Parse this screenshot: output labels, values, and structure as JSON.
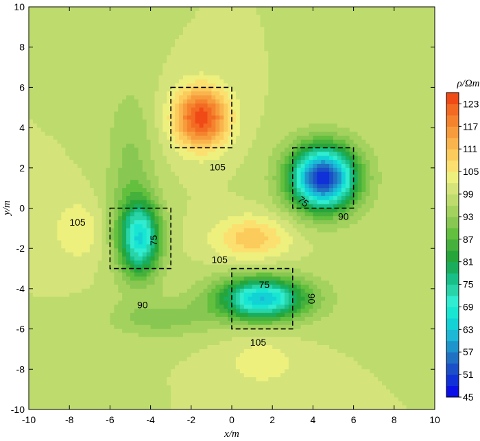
{
  "chart_data": {
    "type": "heatmap",
    "subtype": "filled-contour",
    "title": "",
    "xlabel": "x/m",
    "ylabel": "y/m",
    "xlim": [
      -10,
      10
    ],
    "ylim": [
      -10,
      10
    ],
    "x_ticks": [
      -10,
      -8,
      -6,
      -4,
      -2,
      0,
      2,
      4,
      6,
      8,
      10
    ],
    "y_ticks": [
      -10,
      -8,
      -6,
      -4,
      -2,
      0,
      2,
      4,
      6,
      8,
      10
    ],
    "background_value": 99,
    "anomalies": [
      {
        "name": "high-resistivity-body",
        "center": [
          -1.5,
          4.5
        ],
        "peak": 125
      },
      {
        "name": "low-resistivity-body-northeast",
        "center": [
          4.5,
          1.5
        ],
        "peak": 53
      },
      {
        "name": "low-resistivity-body-west",
        "center": [
          -4.5,
          -1.5
        ],
        "peak": 70
      },
      {
        "name": "low-resistivity-body-south",
        "center": [
          1.5,
          -4.5
        ],
        "peak": 70
      },
      {
        "name": "secondary-high-center",
        "center": [
          1,
          -1.5
        ],
        "peak": 110
      },
      {
        "name": "secondary-high-south",
        "center": [
          1.5,
          -7.5
        ],
        "peak": 104
      }
    ],
    "model_boxes": [
      {
        "name": "box-high",
        "x": [
          -3,
          0
        ],
        "y": [
          3,
          6
        ]
      },
      {
        "name": "box-northeast",
        "x": [
          3,
          6
        ],
        "y": [
          0,
          3
        ]
      },
      {
        "name": "box-west",
        "x": [
          -6,
          -3
        ],
        "y": [
          -3,
          0
        ]
      },
      {
        "name": "box-south",
        "x": [
          0,
          3
        ],
        "y": [
          -6,
          -3
        ]
      }
    ],
    "contour_labels": [
      {
        "text": "105",
        "x": -0.7,
        "y": 2.0,
        "rotation": 0
      },
      {
        "text": "75",
        "x": 3.5,
        "y": 0.3,
        "rotation": 40
      },
      {
        "text": "90",
        "x": 5.5,
        "y": -0.45,
        "rotation": 0
      },
      {
        "text": "105",
        "x": -7.6,
        "y": -0.75,
        "rotation": 0
      },
      {
        "text": "75",
        "x": -3.8,
        "y": -1.6,
        "rotation": -90
      },
      {
        "text": "105",
        "x": -0.6,
        "y": -2.6,
        "rotation": 0
      },
      {
        "text": "75",
        "x": 1.6,
        "y": -3.85,
        "rotation": 0
      },
      {
        "text": "90",
        "x": 3.9,
        "y": -4.5,
        "rotation": 90
      },
      {
        "text": "90",
        "x": -4.4,
        "y": -4.85,
        "rotation": 0
      },
      {
        "text": "105",
        "x": 1.3,
        "y": -6.7,
        "rotation": 0
      }
    ],
    "colorbar": {
      "title": "ρ/Ωm",
      "levels": [
        45,
        48,
        51,
        54,
        57,
        60,
        63,
        66,
        69,
        72,
        75,
        78,
        81,
        84,
        87,
        90,
        93,
        96,
        99,
        102,
        105,
        108,
        111,
        114,
        117,
        120,
        123,
        126
      ],
      "tick_values": [
        123,
        117,
        111,
        105,
        99,
        93,
        87,
        81,
        75,
        69,
        63,
        57,
        51,
        45
      ],
      "colors": [
        "#0a0fe8",
        "#1030d8",
        "#1a4fc8",
        "#2070c4",
        "#1e94cc",
        "#1cb8d6",
        "#12d2d6",
        "#18e6d2",
        "#30ecd0",
        "#28d4a8",
        "#18bf86",
        "#1aad5c",
        "#26a63a",
        "#45b13c",
        "#63bf3e",
        "#88c852",
        "#a4d25e",
        "#bedc6e",
        "#d4e47a",
        "#eef07e",
        "#fbe070",
        "#fbcb5c",
        "#f9b44e",
        "#f79c3c",
        "#f5832e",
        "#f36a22",
        "#f04a16"
      ]
    }
  }
}
